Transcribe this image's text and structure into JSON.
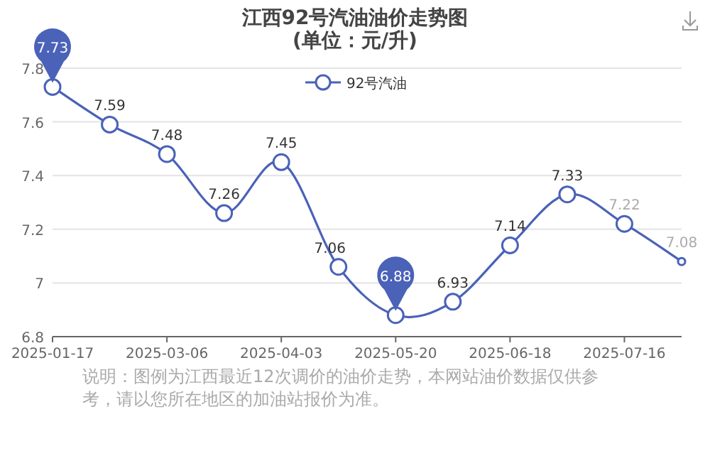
{
  "chart_data": {
    "type": "line",
    "title": "江西92号汽油油价走势图",
    "subtitle": "(单位：元/升)",
    "categories": [
      "2025-01-17",
      null,
      "2025-03-06",
      null,
      "2025-04-03",
      null,
      "2025-05-20",
      null,
      "2025-06-18",
      null,
      "2025-07-16",
      null
    ],
    "series": [
      {
        "name": "92号汽油",
        "color": "#4a62b8",
        "values": [
          7.73,
          7.59,
          7.48,
          7.26,
          7.45,
          7.06,
          6.88,
          6.93,
          7.14,
          7.33,
          7.22,
          7.08
        ]
      }
    ],
    "ylim": [
      6.8,
      7.8
    ],
    "yticks": [
      6.8,
      7,
      7.2,
      7.4,
      7.6,
      7.8
    ],
    "grid": "y",
    "legend": "top",
    "marker": "circle",
    "data_labels": true,
    "annotations": [
      "说明：图例为江西最近12次调价的油价走势，本网站油价数据仅供参考，请以您所在地区的加油站报价为准。"
    ]
  }
}
